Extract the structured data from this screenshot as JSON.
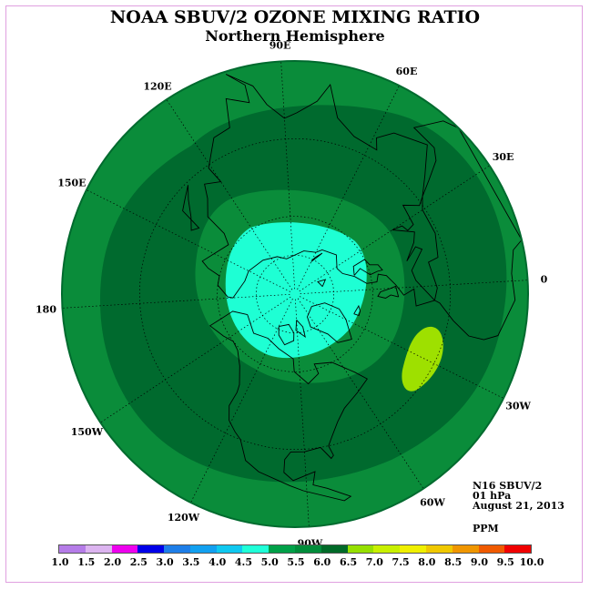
{
  "title": "NOAA SBUV/2 OZONE MIXING RATIO",
  "subtitle": "Northern Hemisphere",
  "info": {
    "instrument": "N16 SBUV/2",
    "level": "01 hPa",
    "date": "August 21, 2013",
    "units": "PPM"
  },
  "longitude_labels": [
    {
      "text": "0",
      "lon": 0
    },
    {
      "text": "30E",
      "lon": 30
    },
    {
      "text": "60E",
      "lon": 60
    },
    {
      "text": "90E",
      "lon": 90
    },
    {
      "text": "120E",
      "lon": 120
    },
    {
      "text": "150E",
      "lon": 150
    },
    {
      "text": "180",
      "lon": 180
    },
    {
      "text": "150W",
      "lon": -150
    },
    {
      "text": "120W",
      "lon": -120
    },
    {
      "text": "90W",
      "lon": -90
    },
    {
      "text": "60W",
      "lon": -60
    },
    {
      "text": "30W",
      "lon": -30
    }
  ],
  "colorbar": {
    "labels": [
      "1.0",
      "1.5",
      "2.0",
      "2.5",
      "3.0",
      "3.5",
      "4.0",
      "4.5",
      "5.0",
      "5.5",
      "6.0",
      "6.5",
      "7.0",
      "7.5",
      "8.0",
      "8.5",
      "9.0",
      "9.5",
      "10.0"
    ],
    "colors": [
      "#b57ce8",
      "#dcb4f0",
      "#ee00ee",
      "#0000e8",
      "#1e7ee8",
      "#12a0f0",
      "#10c8f0",
      "#20ffd8",
      "#00a048",
      "#008c3a",
      "#006a28",
      "#96e000",
      "#c8f000",
      "#f0f000",
      "#f0c800",
      "#f09600",
      "#f05a00",
      "#f00000",
      "#8c5a3c"
    ]
  },
  "contour_levels_ppm": {
    "outer_ring": "5.0-5.5",
    "mid_latitude_band": "5.5-6.0",
    "polar_ring": "5.0-5.5",
    "polar_cap": "4.5-5.0",
    "atlantic_patch": "6.0-6.5"
  },
  "colors": {
    "outer_ring": "#0a8c3a",
    "mid_band": "#006a2e",
    "polar_ring": "#0a8c3a",
    "polar_cap": "#1effd4",
    "patch": "#9ee000",
    "coast": "#000000",
    "grid": "#000000"
  }
}
